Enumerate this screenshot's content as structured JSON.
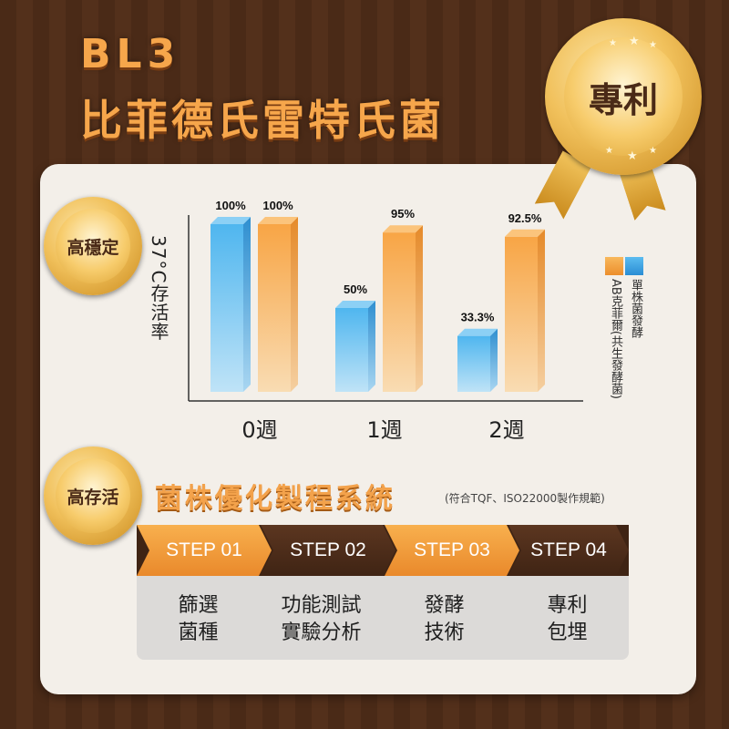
{
  "header": {
    "line1": "BL3",
    "line2": "比菲德氏雷特氏菌"
  },
  "badges": {
    "patent": "專利",
    "stable": "高穩定",
    "survival": "高存活"
  },
  "chart_data": {
    "type": "bar",
    "categories": [
      "0週",
      "1週",
      "2週"
    ],
    "series": [
      {
        "name": "單株菌發酵",
        "values": [
          100,
          50,
          33.3
        ],
        "labels": [
          "100%",
          "50%",
          "33.3%"
        ],
        "color": "#3aa3e3"
      },
      {
        "name": "AB克菲爾(共生發酵菌)",
        "values": [
          100,
          95,
          92.5
        ],
        "labels": [
          "100%",
          "95%",
          "92.5%"
        ],
        "color": "#f4a043"
      }
    ],
    "ylabel": "37°C存活率",
    "xlabel": "",
    "ylim": [
      0,
      100
    ],
    "legend": "right"
  },
  "process": {
    "title": "菌株優化製程系統",
    "note": "(符合TQF、ISO22000製作規範)",
    "steps": [
      {
        "label": "STEP 01",
        "desc1": "篩選",
        "desc2": "菌種"
      },
      {
        "label": "STEP 02",
        "desc1": "功能測試",
        "desc2": "實驗分析"
      },
      {
        "label": "STEP 03",
        "desc1": "發酵",
        "desc2": "技術"
      },
      {
        "label": "STEP 04",
        "desc1": "專利",
        "desc2": "包埋"
      }
    ]
  },
  "colors": {
    "orange": "#f4a043",
    "blue": "#3aa3e3",
    "brown": "#4a2a17",
    "gold": "#f1c15c"
  }
}
